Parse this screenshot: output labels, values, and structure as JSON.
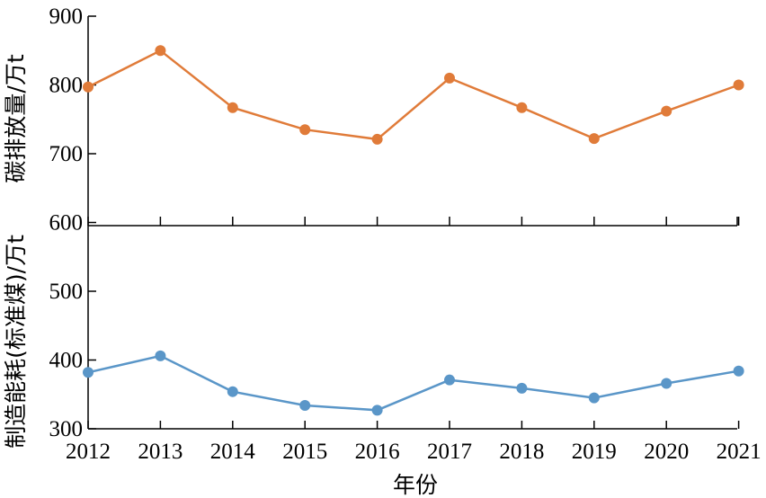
{
  "chart_data": {
    "type": "line",
    "xlabel": "年份",
    "x": [
      "2012",
      "2013",
      "2014",
      "2015",
      "2016",
      "2017",
      "2018",
      "2019",
      "2020",
      "2021"
    ],
    "yticks": [
      "300",
      "400",
      "500",
      "600",
      "700",
      "800",
      "900"
    ],
    "ylim": [
      300,
      900
    ],
    "grid": false,
    "series": [
      {
        "name": "碳排放量/万t",
        "color": "#e07b39",
        "values": [
          797,
          850,
          767,
          735,
          721,
          810,
          767,
          722,
          762,
          800
        ]
      },
      {
        "name": "制造能耗(标准煤)/万t",
        "color": "#5a96c8",
        "values": [
          382,
          406,
          354,
          334,
          327,
          371,
          359,
          345,
          366,
          384
        ]
      }
    ]
  }
}
